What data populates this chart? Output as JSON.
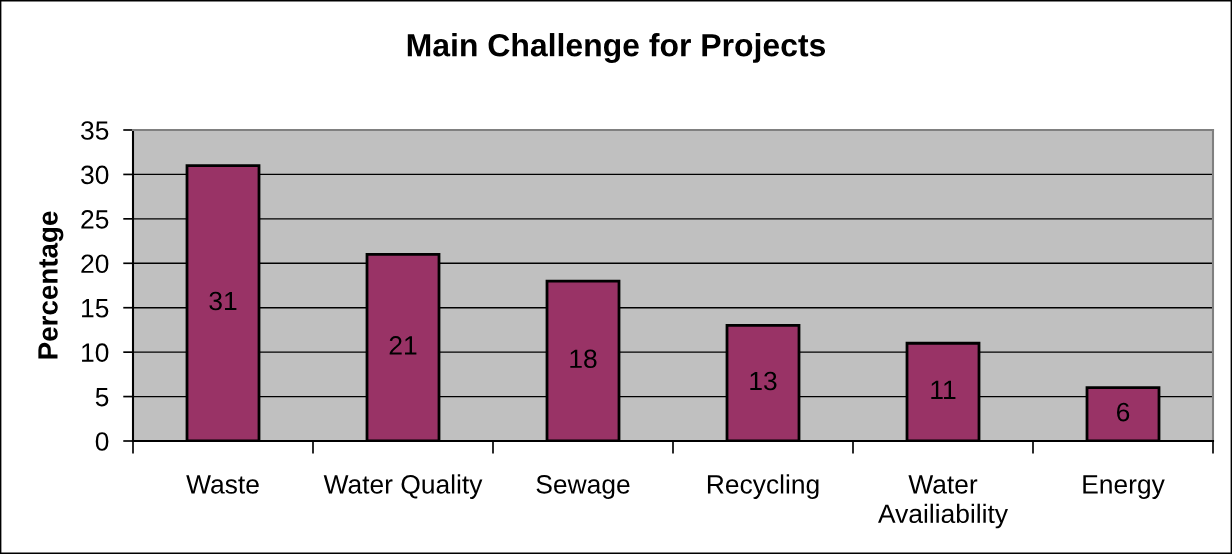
{
  "chart_data": {
    "type": "bar",
    "title": "Main Challenge for Projects",
    "ylabel": "Percentage",
    "categories": [
      "Waste",
      "Water Quality",
      "Sewage",
      "Recycling",
      "Water\nAvailiability",
      "Energy"
    ],
    "values": [
      31,
      21,
      18,
      13,
      11,
      6
    ],
    "color": "#993366",
    "ylim": [
      0,
      35
    ],
    "yticks": [
      0,
      5,
      10,
      15,
      20,
      25,
      30,
      35
    ],
    "grid": "y",
    "data_labels": true
  }
}
